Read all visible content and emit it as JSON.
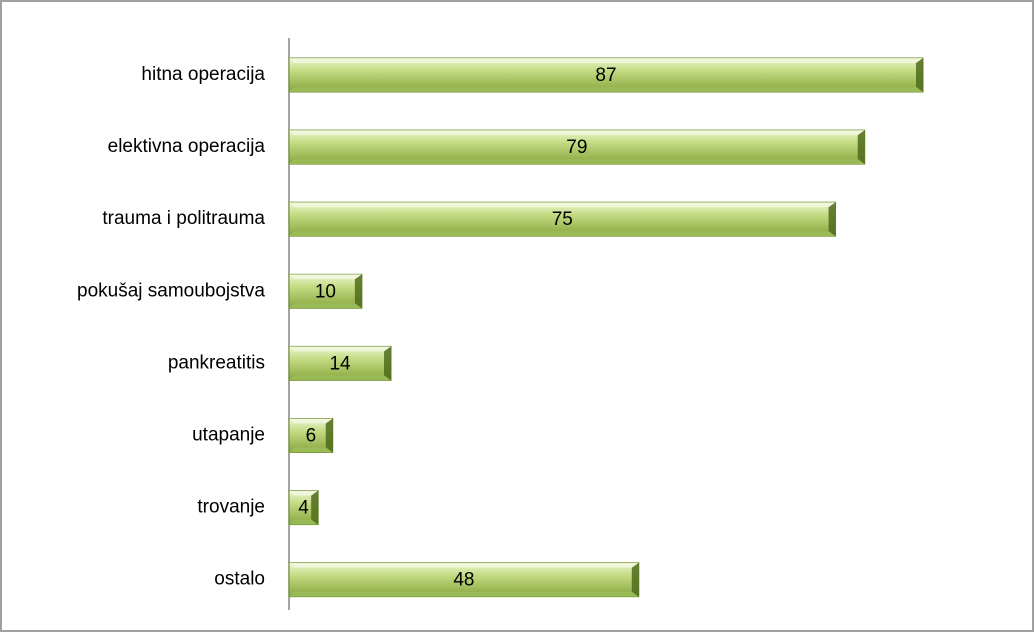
{
  "chart_data": {
    "type": "bar",
    "orientation": "horizontal",
    "categories": [
      "hitna operacija",
      "elektivna operacija",
      "trauma i politrauma",
      "pokušaj samoubojstva",
      "pankreatitis",
      "utapanje",
      "trovanje",
      "ostalo"
    ],
    "values": [
      87,
      79,
      75,
      10,
      14,
      6,
      4,
      48
    ],
    "color": "#9bbb59"
  }
}
